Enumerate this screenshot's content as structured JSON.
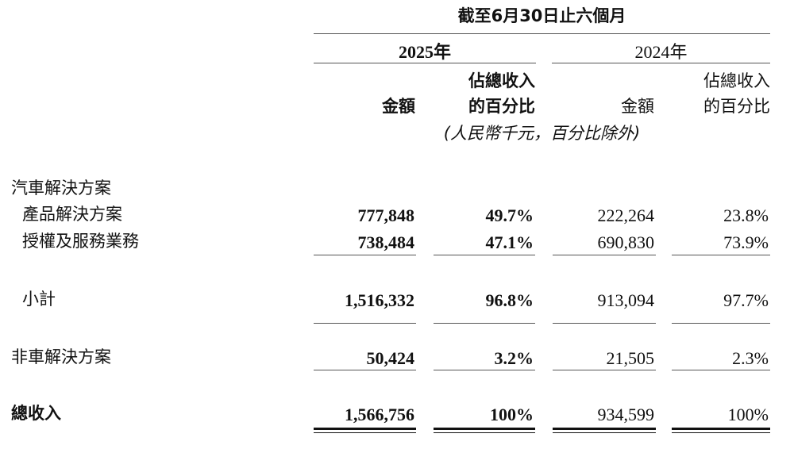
{
  "header": {
    "period": "截至6月30日止六個月",
    "years": [
      "2025年",
      "2024年"
    ],
    "col_pct_line1": "佔總收入",
    "col_pct_line2": "的百分比",
    "col_amount": "金額",
    "unit_note": "(人民幣千元，百分比除外)"
  },
  "rows": [
    {
      "label": "汽車解決方案",
      "values": [
        "",
        "",
        "",
        ""
      ]
    },
    {
      "label": "產品解決方案",
      "values": [
        "777,848",
        "49.7%",
        "222,264",
        "23.8%"
      ]
    },
    {
      "label": "授權及服務業務",
      "values": [
        "738,484",
        "47.1%",
        "690,830",
        "73.9%"
      ]
    },
    {
      "label": "小計",
      "values": [
        "1,516,332",
        "96.8%",
        "913,094",
        "97.7%"
      ]
    },
    {
      "label": "非車解決方案",
      "values": [
        "50,424",
        "3.2%",
        "21,505",
        "2.3%"
      ]
    },
    {
      "label": "總收入",
      "values": [
        "1,566,756",
        "100%",
        "934,599",
        "100%"
      ]
    }
  ]
}
